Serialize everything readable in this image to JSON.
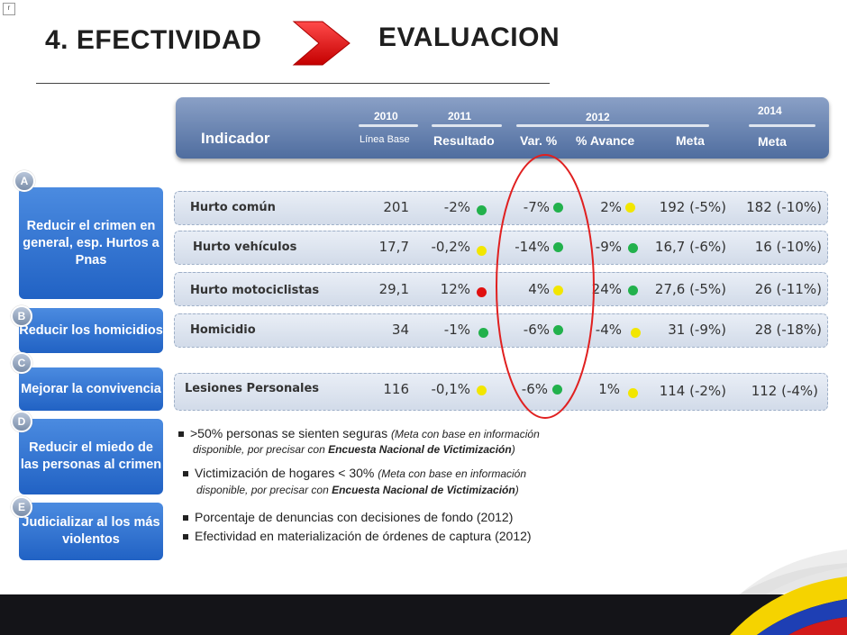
{
  "corner_mark": "r",
  "title": {
    "left": "4. EFECTIVIDAD",
    "right": "EVALUACION"
  },
  "colors": {
    "header": "#5b78a8",
    "objective": "#2f72d6",
    "arrow": "#e02020",
    "green": "#22b14c",
    "yellow": "#f2e600",
    "red": "#e01010"
  },
  "header": {
    "indicador": "Indicador",
    "y2010": "2010",
    "linea_base": "Línea Base",
    "y2011": "2011",
    "resultado": "Resultado",
    "y2012": "2012",
    "var": "Var. %",
    "avance": "% Avance",
    "meta2012": "Meta",
    "y2014": "2014",
    "meta2014": "Meta"
  },
  "rows": [
    {
      "label": "Hurto común",
      "base": "201",
      "res": "-2%",
      "res_dot": "green",
      "var": "-7%",
      "var_dot": "green",
      "avance": "2%",
      "av_dot": "yellow",
      "meta12": "192 (-5%)",
      "meta14": "182 (-10%)"
    },
    {
      "label": "Hurto vehículos",
      "base": "17,7",
      "res": "-0,2%",
      "res_dot": "yellow",
      "var": "-14%",
      "var_dot": "green",
      "avance": "-9%",
      "av_dot": "green",
      "meta12": "16,7 (-6%)",
      "meta14": "16 (-10%)"
    },
    {
      "label": "Hurto motociclistas",
      "base": "29,1",
      "res": "12%",
      "res_dot": "red",
      "var": "4%",
      "var_dot": "yellow",
      "avance": "24%",
      "av_dot": "green",
      "meta12": "27,6 (-5%)",
      "meta14": "26 (-11%)"
    },
    {
      "label": "Homicidio",
      "base": "34",
      "res": "-1%",
      "res_dot": "green",
      "var": "-6%",
      "var_dot": "green",
      "avance": "-4%",
      "av_dot": "yellow",
      "meta12": "31 (-9%)",
      "meta14": "28 (-18%)"
    },
    {
      "label": "Lesiones Personales",
      "base": "116",
      "res": "-0,1%",
      "res_dot": "yellow",
      "var": "-6%",
      "var_dot": "green",
      "avance": "1%",
      "av_dot": "yellow",
      "meta12": "114 (-2%)",
      "meta14": "112 (-4%)"
    }
  ],
  "objectives": [
    {
      "badge": "A",
      "text": "Reducir el crimen en general, esp. Hurtos a Pnas"
    },
    {
      "badge": "B",
      "text": "Reducir los homicidios"
    },
    {
      "badge": "C",
      "text": "Mejorar la convivencia"
    },
    {
      "badge": "D",
      "text": "Reducir el miedo de las personas al crimen"
    },
    {
      "badge": "E",
      "text": "Judicializar al los más violentos"
    }
  ],
  "bullets": {
    "b1_main": ">50% personas se sienten seguras ",
    "b1_note": "(Meta con base en información",
    "b1_line2_a": "disponible, por precisar con ",
    "b1_line2_b": "Encuesta Nacional de Victimización",
    "b1_line2_c": ")",
    "b2_main": "Victimización de hogares < 30% ",
    "b2_note": "(Meta con base en información",
    "b2_line2_a": "disponible, por precisar con ",
    "b2_line2_b": "Encuesta Nacional de Victimización",
    "b2_line2_c": ")",
    "b3": "Porcentaje de denuncias con decisiones de fondo (2012)",
    "b4": "Efectividad en materialización de órdenes de captura (2012)"
  }
}
